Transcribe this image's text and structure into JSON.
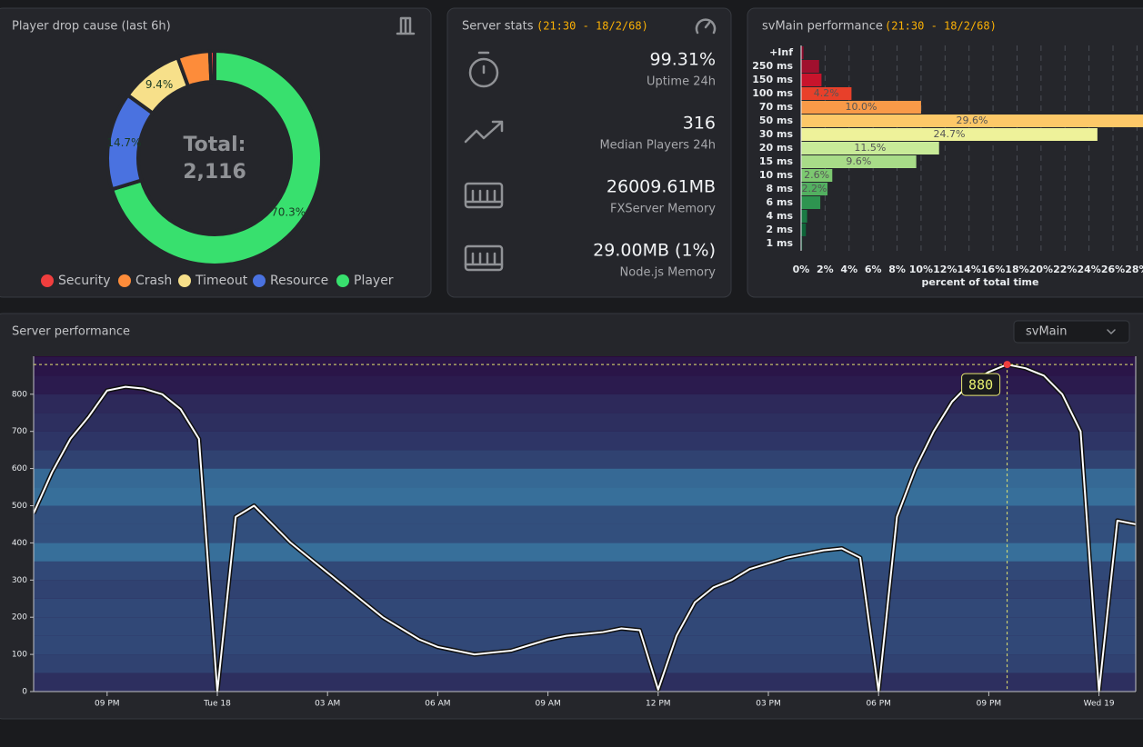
{
  "drop_cause": {
    "title": "Player drop cause (last 6h)",
    "chart": {
      "type": "donut",
      "center_title": "Total:",
      "center_value": "2,116",
      "categories": [
        "Security",
        "Crash",
        "Timeout",
        "Resource",
        "Player"
      ],
      "colors": [
        "#f03e3e",
        "#fd8c3a",
        "#f7e08a",
        "#4a72e0",
        "#38e06e"
      ],
      "values": [
        0.7,
        4.9,
        9.4,
        14.7,
        70.3
      ],
      "value_labels": [
        null,
        null,
        "9.4%",
        "14.7%",
        "70.3%"
      ]
    }
  },
  "server_stats": {
    "title": "Server stats",
    "timestamp": "(21:30 - 18/2/68)",
    "items": [
      {
        "value": "99.31%",
        "label": "Uptime 24h"
      },
      {
        "value": "316",
        "label": "Median Players 24h"
      },
      {
        "value": "26009.61MB",
        "label": "FXServer Memory"
      },
      {
        "value": "29.00MB (1%)",
        "label": "Node.js Memory"
      }
    ]
  },
  "svmain_perf": {
    "title": "svMain performance",
    "timestamp": "(21:30 - 18/2/68)",
    "chart": {
      "type": "hbar",
      "categories": [
        "+Inf",
        "250 ms",
        "150 ms",
        "100 ms",
        "70 ms",
        "50 ms",
        "30 ms",
        "20 ms",
        "15 ms",
        "10 ms",
        "8 ms",
        "6 ms",
        "4 ms",
        "2 ms",
        "1 ms"
      ],
      "values": [
        0.2,
        1.5,
        1.7,
        4.2,
        10.0,
        29.6,
        24.7,
        11.5,
        9.6,
        2.6,
        2.2,
        1.6,
        0.5,
        0.4,
        0.1
      ],
      "value_labels": [
        null,
        null,
        null,
        "4.2%",
        "10.0%",
        "29.6%",
        "24.7%",
        "11.5%",
        "9.6%",
        "2.6%",
        "2.2%",
        null,
        null,
        null,
        null
      ],
      "colors": [
        "#8b0a2a",
        "#a0102e",
        "#c8142c",
        "#e8402a",
        "#f99a48",
        "#fdc868",
        "#eef29a",
        "#c8ea98",
        "#a8dc88",
        "#7cc870",
        "#52b060",
        "#2e9450",
        "#1a7a44",
        "#0e6438",
        "#084c2c"
      ],
      "xlim": [
        0,
        28.5
      ],
      "xticks": [
        {
          "value": 0,
          "label": "0%"
        },
        {
          "value": 2,
          "label": "2%"
        },
        {
          "value": 4,
          "label": "4%"
        },
        {
          "value": 6,
          "label": "6%"
        },
        {
          "value": 8,
          "label": "8%"
        },
        {
          "value": 10,
          "label": "10%"
        },
        {
          "value": 12,
          "label": "12%"
        },
        {
          "value": 14,
          "label": "14%"
        },
        {
          "value": 16,
          "label": "16%"
        },
        {
          "value": 18,
          "label": "18%"
        },
        {
          "value": 20,
          "label": "20%"
        },
        {
          "value": 22,
          "label": "22%"
        },
        {
          "value": 24,
          "label": "24%"
        },
        {
          "value": 26,
          "label": "26%"
        },
        {
          "value": 28,
          "label": "28%"
        }
      ],
      "xlabel": "percent of total time",
      "grid": true
    }
  },
  "server_perf": {
    "title": "Server performance",
    "selector": "svMain",
    "chart": {
      "type": "line",
      "series": [
        {
          "color": "#ffffff",
          "values": [
            480,
            590,
            680,
            740,
            810,
            820,
            815,
            800,
            760,
            680,
            0,
            470,
            500,
            450,
            400,
            360,
            320,
            280,
            240,
            200,
            170,
            140,
            120,
            110,
            100,
            105,
            110,
            125,
            140,
            150,
            155,
            160,
            170,
            165,
            5,
            150,
            240,
            280,
            300,
            330,
            345,
            360,
            370,
            380,
            385,
            360,
            0,
            470,
            600,
            700,
            780,
            830,
            860,
            880,
            870,
            850,
            800,
            700,
            0,
            460,
            450
          ]
        }
      ],
      "xlim": [
        0,
        60
      ],
      "xticks": [
        {
          "value": 4,
          "label": "09 PM"
        },
        {
          "value": 10,
          "label": "Tue 18"
        },
        {
          "value": 16,
          "label": "03 AM"
        },
        {
          "value": 22,
          "label": "06 AM"
        },
        {
          "value": 28,
          "label": "09 AM"
        },
        {
          "value": 34,
          "label": "12 PM"
        },
        {
          "value": 40,
          "label": "03 PM"
        },
        {
          "value": 46,
          "label": "06 PM"
        },
        {
          "value": 52,
          "label": "09 PM"
        },
        {
          "value": 58,
          "label": "Wed 19"
        }
      ],
      "ylim": [
        0,
        890
      ],
      "yticks": [
        0,
        100,
        200,
        300,
        400,
        500,
        600,
        700,
        800
      ],
      "heatmap_bins": [
        0,
        50,
        100,
        150,
        200,
        250,
        300,
        350,
        400,
        450,
        500,
        550,
        600,
        650,
        700,
        750,
        800,
        850,
        900
      ],
      "heatmap_intensity": [
        0.3,
        0.45,
        0.5,
        0.5,
        0.5,
        0.45,
        0.5,
        0.8,
        0.55,
        0.55,
        0.8,
        0.75,
        0.45,
        0.35,
        0.3,
        0.25,
        0.15,
        0.1
      ],
      "annotation": {
        "x": 53,
        "y": 880
      }
    }
  }
}
